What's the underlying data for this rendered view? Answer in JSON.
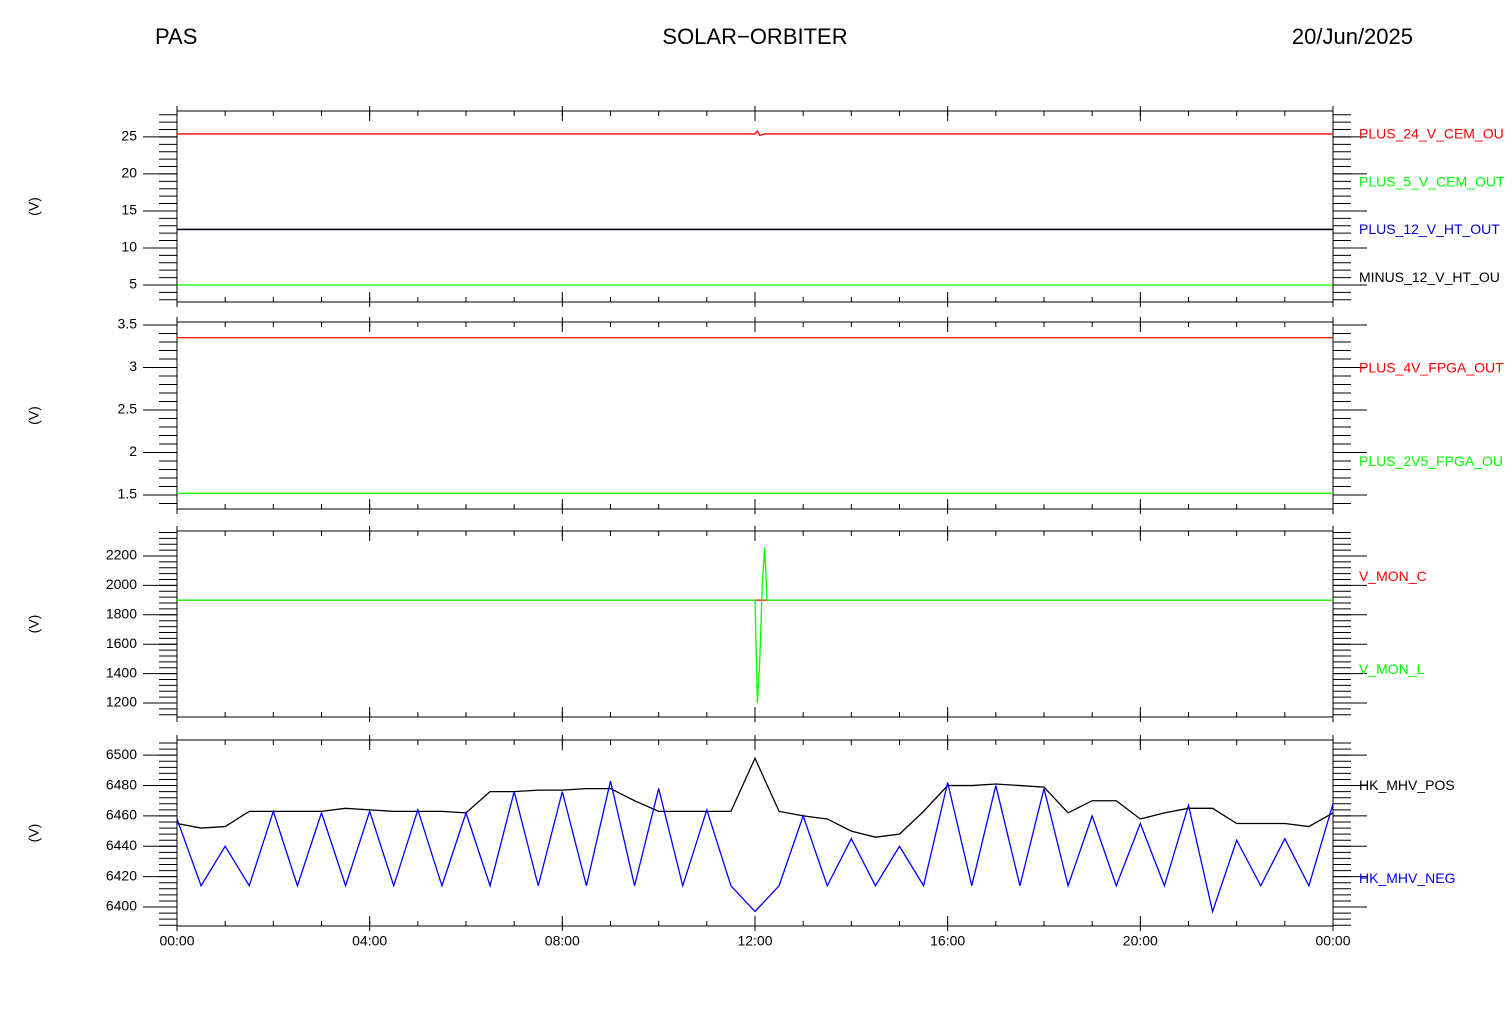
{
  "header": {
    "left": "PAS",
    "center": "SOLAR−ORBITER",
    "right": "20/Jun/2025"
  },
  "chart_data": [
    {
      "type": "line",
      "ylabel": "(V)",
      "xlim": [
        0,
        24
      ],
      "xticks": [
        0,
        4,
        8,
        12,
        16,
        20,
        24
      ],
      "ylim": [
        2.7,
        28.5
      ],
      "yticks": [
        5,
        10,
        15,
        20,
        25
      ],
      "x": [
        0,
        12,
        12.05,
        12.1,
        12.2,
        24
      ],
      "series": [
        {
          "name": "PLUS_24_V_CEM_OU",
          "color": "#ff0000",
          "values": [
            25.4,
            25.4,
            25.8,
            25.2,
            25.4,
            25.4
          ]
        },
        {
          "name": "PLUS_5_V_CEM_OUT",
          "color": "#00ff00",
          "values": [
            5.0,
            5.0,
            5.0,
            5.0,
            5.0,
            5.0
          ]
        },
        {
          "name": "PLUS_12_V_HT_OUT",
          "color": "#0000cc",
          "values": [
            12.5,
            12.5,
            12.5,
            12.5,
            12.5,
            12.5
          ]
        },
        {
          "name": "MINUS_12_V_HT_OU",
          "color": "#000000",
          "values": [
            12.5,
            12.5,
            12.5,
            12.5,
            12.5,
            12.5
          ]
        }
      ]
    },
    {
      "type": "line",
      "ylabel": "(V)",
      "xlim": [
        0,
        24
      ],
      "xticks": [
        0,
        4,
        8,
        12,
        16,
        20,
        24
      ],
      "ylim": [
        1.335,
        3.535
      ],
      "yticks": [
        1.5,
        2.0,
        2.5,
        3.0,
        3.5
      ],
      "x": [
        0,
        24
      ],
      "series": [
        {
          "name": "PLUS_4V_FPGA_OUT",
          "color": "#ff0000",
          "values": [
            3.35,
            3.35
          ]
        },
        {
          "name": "PLUS_2V5_FPGA_OU",
          "color": "#00ff00",
          "values": [
            1.52,
            1.52
          ]
        }
      ]
    },
    {
      "type": "line",
      "ylabel": "(V)",
      "xlim": [
        0,
        24
      ],
      "xticks": [
        0,
        4,
        8,
        12,
        16,
        20,
        24
      ],
      "ylim": [
        1105,
        2370
      ],
      "yticks": [
        1200,
        1400,
        1600,
        1800,
        2000,
        2200
      ],
      "x": [
        0,
        12,
        12.05,
        12.1,
        12.15,
        12.2,
        12.25,
        24
      ],
      "series": [
        {
          "name": "V_MON_C",
          "color": "#ff0000",
          "values": [
            1900,
            1900,
            1900,
            1900,
            1900,
            1900,
            1900,
            1900
          ]
        },
        {
          "name": "V_MON_L",
          "color": "#00ff00",
          "values": [
            1900,
            1900,
            1200,
            1500,
            2000,
            2260,
            1900,
            1900
          ]
        }
      ]
    },
    {
      "type": "line",
      "ylabel": "(V)",
      "xlim": [
        0,
        24
      ],
      "xticks": [
        {
          "value": 0,
          "label": "00:00"
        },
        {
          "value": 4,
          "label": "04:00"
        },
        {
          "value": 8,
          "label": "08:00"
        },
        {
          "value": 12,
          "label": "12:00"
        },
        {
          "value": 16,
          "label": "16:00"
        },
        {
          "value": 20,
          "label": "20:00"
        },
        {
          "value": 24,
          "label": "00:00"
        }
      ],
      "ylim": [
        6387.5,
        6510
      ],
      "yticks": [
        6400,
        6420,
        6440,
        6460,
        6480,
        6500
      ],
      "x": [
        0,
        0.5,
        1,
        1.5,
        2,
        2.5,
        3,
        3.5,
        4,
        4.5,
        5,
        5.5,
        6,
        6.5,
        7,
        7.5,
        8,
        8.5,
        9,
        9.5,
        10,
        10.5,
        11,
        11.5,
        12,
        12.5,
        13,
        13.5,
        14,
        14.5,
        15,
        15.5,
        16,
        16.5,
        17,
        17.5,
        18,
        18.5,
        19,
        19.5,
        20,
        20.5,
        21,
        21.5,
        22,
        22.5,
        23,
        23.5,
        24
      ],
      "series": [
        {
          "name": "HK_MHV_POS",
          "color": "#000000",
          "values": [
            6455,
            6452,
            6453,
            6463,
            6463,
            6463,
            6463,
            6465,
            6464,
            6463,
            6463,
            6463,
            6462,
            6476,
            6476,
            6477,
            6477,
            6478,
            6478,
            6470,
            6463,
            6463,
            6463,
            6463,
            6498,
            6463,
            6460,
            6458,
            6450,
            6446,
            6448,
            6463,
            6480,
            6480,
            6481,
            6480,
            6479,
            6462,
            6470,
            6470,
            6458,
            6462,
            6465,
            6465,
            6455,
            6455,
            6455,
            6453,
            6462
          ]
        },
        {
          "name": "HK_MHV_NEG",
          "color": "#0000ff",
          "values": [
            6458,
            6414,
            6440,
            6414,
            6463,
            6414,
            6462,
            6414,
            6463,
            6414,
            6464,
            6414,
            6462,
            6414,
            6476,
            6414,
            6476,
            6414,
            6483,
            6414,
            6478,
            6414,
            6464,
            6414,
            6397,
            6414,
            6460,
            6414,
            6445,
            6414,
            6440,
            6414,
            6482,
            6414,
            6480,
            6414,
            6478,
            6414,
            6460,
            6414,
            6455,
            6414,
            6467,
            6397,
            6444,
            6414,
            6445,
            6414,
            6468
          ]
        }
      ]
    }
  ]
}
